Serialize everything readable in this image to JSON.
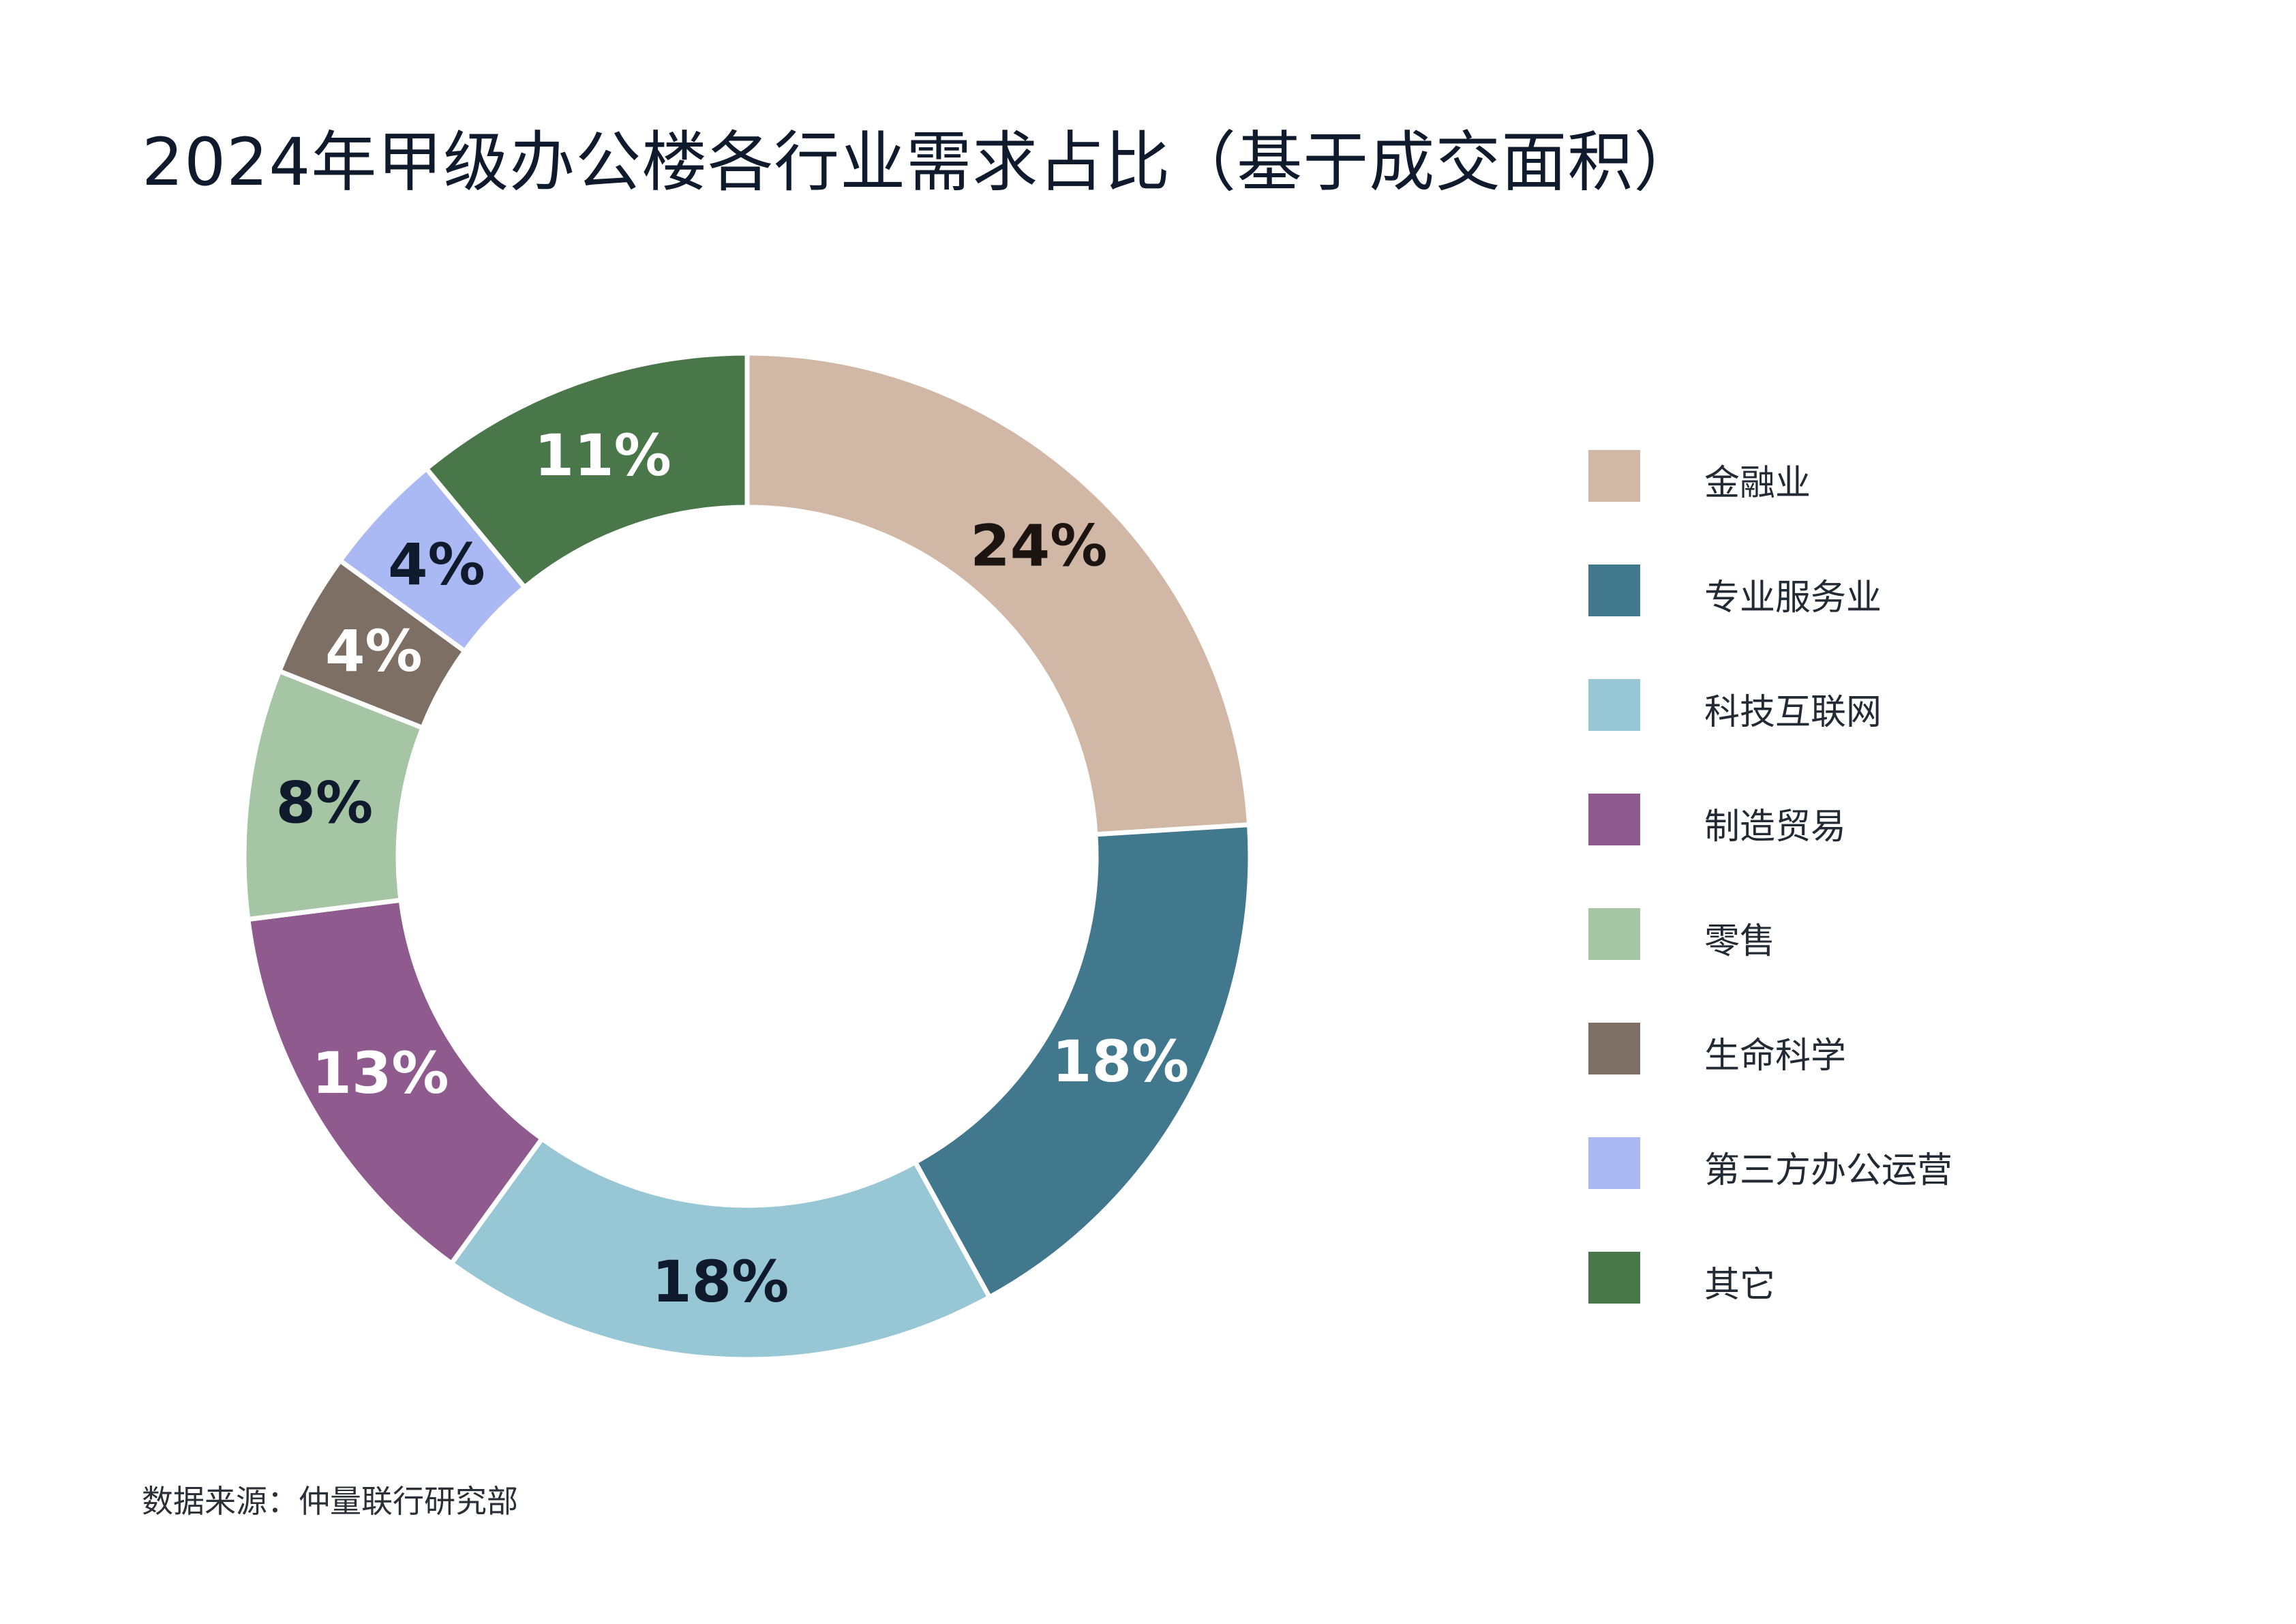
{
  "title": "2024年甲级办公楼各行业需求占比（基于成交面积）",
  "source": "数据来源：仲量联行研究部",
  "chart_data": {
    "type": "pie",
    "variant": "donut",
    "categories": [
      "金融业",
      "专业服务业",
      "科技互联网",
      "制造贸易",
      "零售",
      "生命科学",
      "第三方办公运营",
      "其它"
    ],
    "values": [
      24,
      18,
      18,
      13,
      8,
      4,
      4,
      11
    ],
    "data_labels": [
      "24%",
      "18%",
      "18%",
      "13%",
      "8%",
      "4%",
      "4%",
      "11%"
    ],
    "colors": [
      "#D1B8A6",
      "#41788D",
      "#97C6D5",
      "#8F5A8E",
      "#A6C5A4",
      "#7D6F64",
      "#AAB8F3",
      "#4A7749"
    ],
    "label_colors": [
      "#1c1410",
      "#ffffff",
      "#0f1b2d",
      "#ffffff",
      "#0f1b2d",
      "#ffffff",
      "#0f1b2d",
      "#ffffff"
    ],
    "start_angle": "12 o'clock",
    "direction": "clockwise",
    "legend_position": "right"
  }
}
